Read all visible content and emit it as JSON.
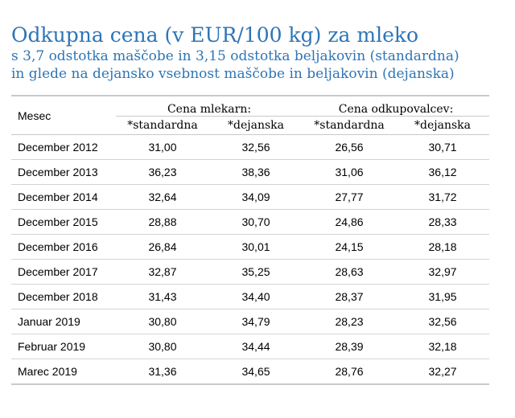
{
  "title": "Odkupna cena (v EUR/100 kg) za mleko",
  "subtitle_line1": "s 3,7 odstotka maščobe in 3,15 odstotka beljakovin (standardna)",
  "subtitle_line2": "in glede na dejansko vsebnost maščobe in beljakovin (dejanska)",
  "table": {
    "col_month": "Mesec",
    "group_dairies": "Cena mlekarn:",
    "group_buyers": "Cena odkupovalcev:",
    "sub_standard": "*standardna",
    "sub_actual": "*dejanska",
    "rows": [
      {
        "month": "December 2012",
        "d_std": "31,00",
        "d_act": "32,56",
        "b_std": "26,56",
        "b_act": "30,71"
      },
      {
        "month": "December 2013",
        "d_std": "36,23",
        "d_act": "38,36",
        "b_std": "31,06",
        "b_act": "36,12"
      },
      {
        "month": "December 2014",
        "d_std": "32,64",
        "d_act": "34,09",
        "b_std": "27,77",
        "b_act": "31,72"
      },
      {
        "month": "December 2015",
        "d_std": "28,88",
        "d_act": "30,70",
        "b_std": "24,86",
        "b_act": "28,33"
      },
      {
        "month": "December 2016",
        "d_std": "26,84",
        "d_act": "30,01",
        "b_std": "24,15",
        "b_act": "28,18"
      },
      {
        "month": "December 2017",
        "d_std": "32,87",
        "d_act": "35,25",
        "b_std": "28,63",
        "b_act": "32,97"
      },
      {
        "month": "December 2018",
        "d_std": "31,43",
        "d_act": "34,40",
        "b_std": "28,37",
        "b_act": "31,95"
      },
      {
        "month": "Januar 2019",
        "d_std": "30,80",
        "d_act": "34,79",
        "b_std": "28,23",
        "b_act": "32,56"
      },
      {
        "month": "Februar 2019",
        "d_std": "30,80",
        "d_act": "34,44",
        "b_std": "28,39",
        "b_act": "32,18"
      },
      {
        "month": "Marec 2019",
        "d_std": "31,36",
        "d_act": "34,65",
        "b_std": "28,76",
        "b_act": "32,27"
      }
    ]
  }
}
